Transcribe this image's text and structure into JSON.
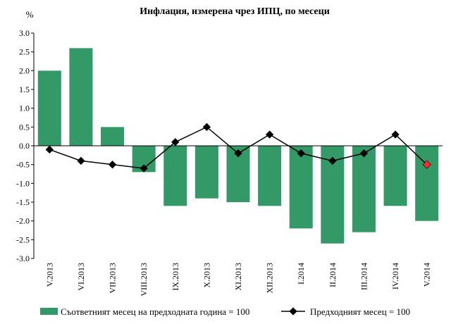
{
  "chart_data": {
    "type": "bar",
    "title": "Инфлация, измерена чрез ИПЦ, по месеци",
    "ylabel": "%",
    "ylim": [
      -3.0,
      3.0
    ],
    "ytick_step": 0.5,
    "ytick_labels": [
      "3.0",
      "2.5",
      "2.0",
      "1.5",
      "1.0",
      "0.5",
      "0.0",
      "-0.5",
      "-1.0",
      "-1.5",
      "-2.0",
      "-2.5",
      "-3.0"
    ],
    "categories": [
      "V.2013",
      "VI.2013",
      "VII.2013",
      "VIII.2013",
      "IX.2013",
      "X.2013",
      "XI.2013",
      "XII.2013",
      "I.2014",
      "II.2014",
      "III.2014",
      "IV.2014",
      "V.2014"
    ],
    "series": [
      {
        "name": "Съответният месец на предходната година = 100",
        "kind": "bar",
        "color": "#339966",
        "values": [
          2.0,
          2.6,
          0.5,
          -0.7,
          -1.6,
          -1.4,
          -1.5,
          -1.6,
          -2.2,
          -2.6,
          -2.3,
          -1.6,
          -2.0
        ]
      },
      {
        "name": "Предходният месец = 100",
        "kind": "line",
        "color": "#000000",
        "marker": "diamond",
        "last_marker_color": "#ff2a2a",
        "values": [
          -0.1,
          -0.4,
          -0.5,
          -0.6,
          0.1,
          0.5,
          -0.2,
          0.3,
          -0.2,
          -0.4,
          -0.2,
          0.3,
          -0.5
        ]
      }
    ],
    "grid": false,
    "legend_position": "bottom"
  }
}
